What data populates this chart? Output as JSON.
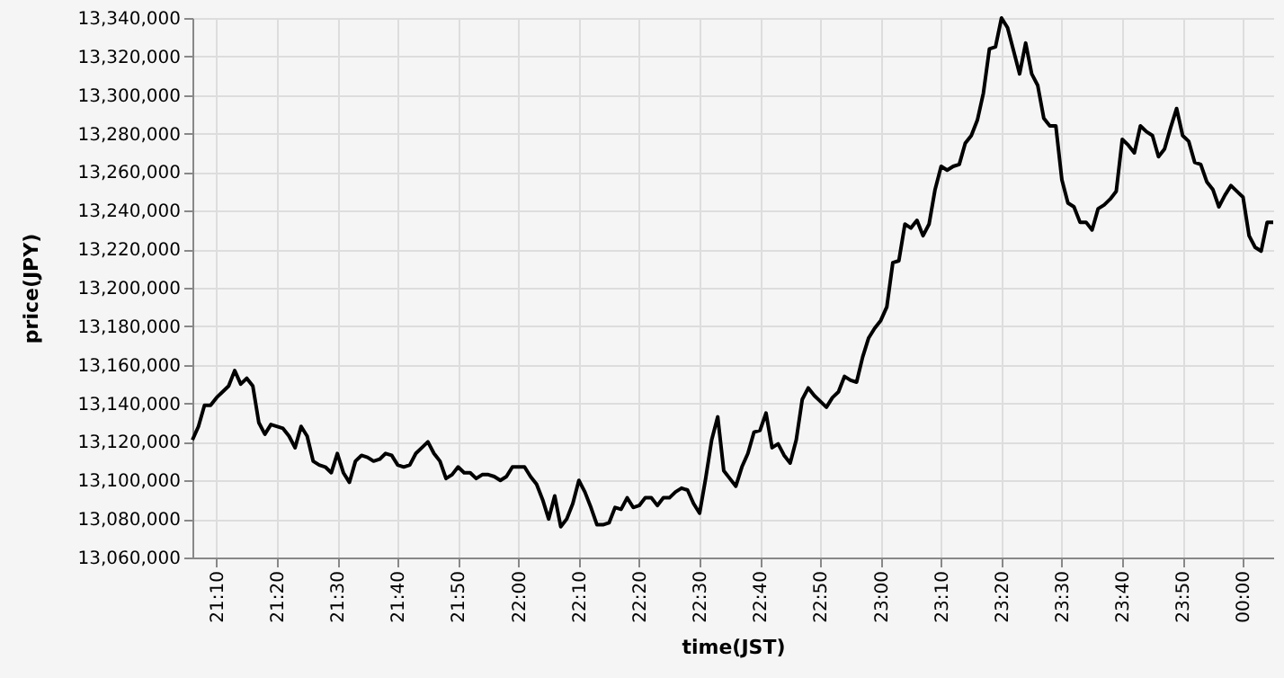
{
  "chart_data": {
    "type": "line",
    "xlabel": "time(JST)",
    "ylabel": "price(JPY)",
    "xlim": [
      21.1,
      24.0833
    ],
    "ylim": [
      13060000,
      13340000
    ],
    "xticks": [
      {
        "value": 21.1667,
        "label": "21:10"
      },
      {
        "value": 21.3333,
        "label": "21:20"
      },
      {
        "value": 21.5,
        "label": "21:30"
      },
      {
        "value": 21.6667,
        "label": "21:40"
      },
      {
        "value": 21.8333,
        "label": "21:50"
      },
      {
        "value": 22,
        "label": "22:00"
      },
      {
        "value": 22.1667,
        "label": "22:10"
      },
      {
        "value": 22.3333,
        "label": "22:20"
      },
      {
        "value": 22.5,
        "label": "22:30"
      },
      {
        "value": 22.6667,
        "label": "22:40"
      },
      {
        "value": 22.8333,
        "label": "22:50"
      },
      {
        "value": 23,
        "label": "23:00"
      },
      {
        "value": 23.1667,
        "label": "23:10"
      },
      {
        "value": 23.3333,
        "label": "23:20"
      },
      {
        "value": 23.5,
        "label": "23:30"
      },
      {
        "value": 23.6667,
        "label": "23:40"
      },
      {
        "value": 23.8333,
        "label": "23:50"
      },
      {
        "value": 24,
        "label": "00:00"
      }
    ],
    "yticks": [
      {
        "value": 13060000,
        "label": "13,060,000"
      },
      {
        "value": 13080000,
        "label": "13,080,000"
      },
      {
        "value": 13100000,
        "label": "13,100,000"
      },
      {
        "value": 13120000,
        "label": "13,120,000"
      },
      {
        "value": 13140000,
        "label": "13,140,000"
      },
      {
        "value": 13160000,
        "label": "13,160,000"
      },
      {
        "value": 13180000,
        "label": "13,180,000"
      },
      {
        "value": 13200000,
        "label": "13,200,000"
      },
      {
        "value": 13220000,
        "label": "13,220,000"
      },
      {
        "value": 13240000,
        "label": "13,240,000"
      },
      {
        "value": 13260000,
        "label": "13,260,000"
      },
      {
        "value": 13280000,
        "label": "13,280,000"
      },
      {
        "value": 13300000,
        "label": "13,300,000"
      },
      {
        "value": 13320000,
        "label": "13,320,000"
      },
      {
        "value": 13340000,
        "label": "13,340,000"
      }
    ],
    "grid": true,
    "x": [
      21.1,
      21.1167,
      21.1333,
      21.15,
      21.1667,
      21.1833,
      21.2,
      21.2167,
      21.2333,
      21.25,
      21.2667,
      21.2833,
      21.3,
      21.3167,
      21.35,
      21.3667,
      21.3833,
      21.4,
      21.4167,
      21.4333,
      21.45,
      21.4667,
      21.4833,
      21.5,
      21.5167,
      21.5333,
      21.55,
      21.5667,
      21.5833,
      21.6,
      21.6167,
      21.6333,
      21.65,
      21.6667,
      21.6833,
      21.7,
      21.7167,
      21.7333,
      21.75,
      21.7667,
      21.7833,
      21.8,
      21.8167,
      21.8333,
      21.85,
      21.8667,
      21.8833,
      21.9,
      21.9167,
      21.9333,
      21.95,
      21.9667,
      21.9833,
      22.0167,
      22.0333,
      22.05,
      22.0667,
      22.0833,
      22.1,
      22.1167,
      22.1333,
      22.15,
      22.1667,
      22.1833,
      22.2,
      22.2167,
      22.2333,
      22.25,
      22.2667,
      22.2833,
      22.3,
      22.3167,
      22.3333,
      22.35,
      22.3667,
      22.3833,
      22.4,
      22.4167,
      22.4333,
      22.45,
      22.4667,
      22.4833,
      22.5,
      22.5167,
      22.5333,
      22.55,
      22.5667,
      22.5833,
      22.6,
      22.6167,
      22.6333,
      22.65,
      22.6667,
      22.6833,
      22.7,
      22.7167,
      22.7333,
      22.75,
      22.7667,
      22.7833,
      22.8,
      22.8167,
      22.8333,
      22.85,
      22.8667,
      22.8833,
      22.9,
      22.9167,
      22.9333,
      22.95,
      22.9667,
      22.9833,
      23,
      23.0167,
      23.0333,
      23.05,
      23.0667,
      23.0833,
      23.1,
      23.1167,
      23.1333,
      23.15,
      23.1667,
      23.1833,
      23.2,
      23.2167,
      23.2333,
      23.25,
      23.2667,
      23.2833,
      23.3,
      23.3167,
      23.3333,
      23.35,
      23.3667,
      23.3833,
      23.4,
      23.4167,
      23.4333,
      23.45,
      23.4667,
      23.4833,
      23.5,
      23.5167,
      23.5333,
      23.55,
      23.5667,
      23.5833,
      23.6,
      23.6167,
      23.6333,
      23.65,
      23.6667,
      23.6833,
      23.7,
      23.7167,
      23.7333,
      23.75,
      23.7667,
      23.7833,
      23.8,
      23.8167,
      23.8333,
      23.85,
      23.8667,
      23.8833,
      23.9,
      23.9167,
      23.9333,
      23.95,
      23.9667,
      23.9833,
      24,
      24.0167,
      24.0333,
      24.05,
      24.0667,
      24.0833
    ],
    "series": [
      {
        "color": "#000000",
        "values": [
          13121000,
          13128000,
          13139000,
          13139000,
          13143000,
          13146000,
          13149000,
          13157000,
          13150000,
          13153000,
          13149000,
          13130000,
          13124000,
          13129000,
          13127000,
          13123000,
          13117000,
          13128000,
          13123000,
          13110000,
          13108000,
          13107000,
          13104000,
          13114000,
          13104000,
          13099000,
          13110000,
          13113000,
          13112000,
          13110000,
          13111000,
          13114000,
          13113000,
          13108000,
          13107000,
          13108000,
          13114000,
          13117000,
          13120000,
          13114000,
          13110000,
          13101000,
          13103000,
          13107000,
          13104000,
          13104000,
          13101000,
          13103000,
          13103000,
          13102000,
          13100000,
          13102000,
          13107000,
          13107000,
          13102000,
          13098000,
          13090000,
          13080000,
          13092000,
          13076000,
          13080000,
          13088000,
          13100000,
          13094000,
          13086000,
          13077000,
          13077000,
          13078000,
          13086000,
          13085000,
          13091000,
          13086000,
          13087000,
          13091000,
          13091000,
          13087000,
          13091000,
          13091000,
          13094000,
          13096000,
          13095000,
          13088000,
          13083000,
          13101000,
          13121000,
          13133000,
          13105000,
          13101000,
          13097000,
          13107000,
          13114000,
          13125000,
          13126000,
          13135000,
          13117000,
          13119000,
          13113000,
          13109000,
          13121000,
          13142000,
          13148000,
          13144000,
          13141000,
          13138000,
          13143000,
          13146000,
          13154000,
          13152000,
          13151000,
          13164000,
          13174000,
          13179000,
          13183000,
          13190000,
          13213000,
          13214000,
          13233000,
          13231000,
          13235000,
          13227000,
          13233000,
          13251000,
          13263000,
          13261000,
          13263000,
          13264000,
          13275000,
          13279000,
          13287000,
          13301000,
          13324000,
          13325000,
          13340000,
          13335000,
          13323000,
          13311000,
          13327000,
          13311000,
          13305000,
          13288000,
          13284000,
          13284000,
          13256000,
          13244000,
          13242000,
          13234000,
          13234000,
          13230000,
          13241000,
          13243000,
          13246000,
          13250000,
          13277000,
          13274000,
          13270000,
          13284000,
          13281000,
          13279000,
          13268000,
          13272000,
          13283000,
          13293000,
          13279000,
          13276000,
          13265000,
          13264000,
          13255000,
          13251000,
          13242000,
          13248000,
          13253000,
          13250000,
          13247000,
          13227000,
          13221000,
          13219000,
          13234000,
          13234000
        ]
      }
    ]
  }
}
